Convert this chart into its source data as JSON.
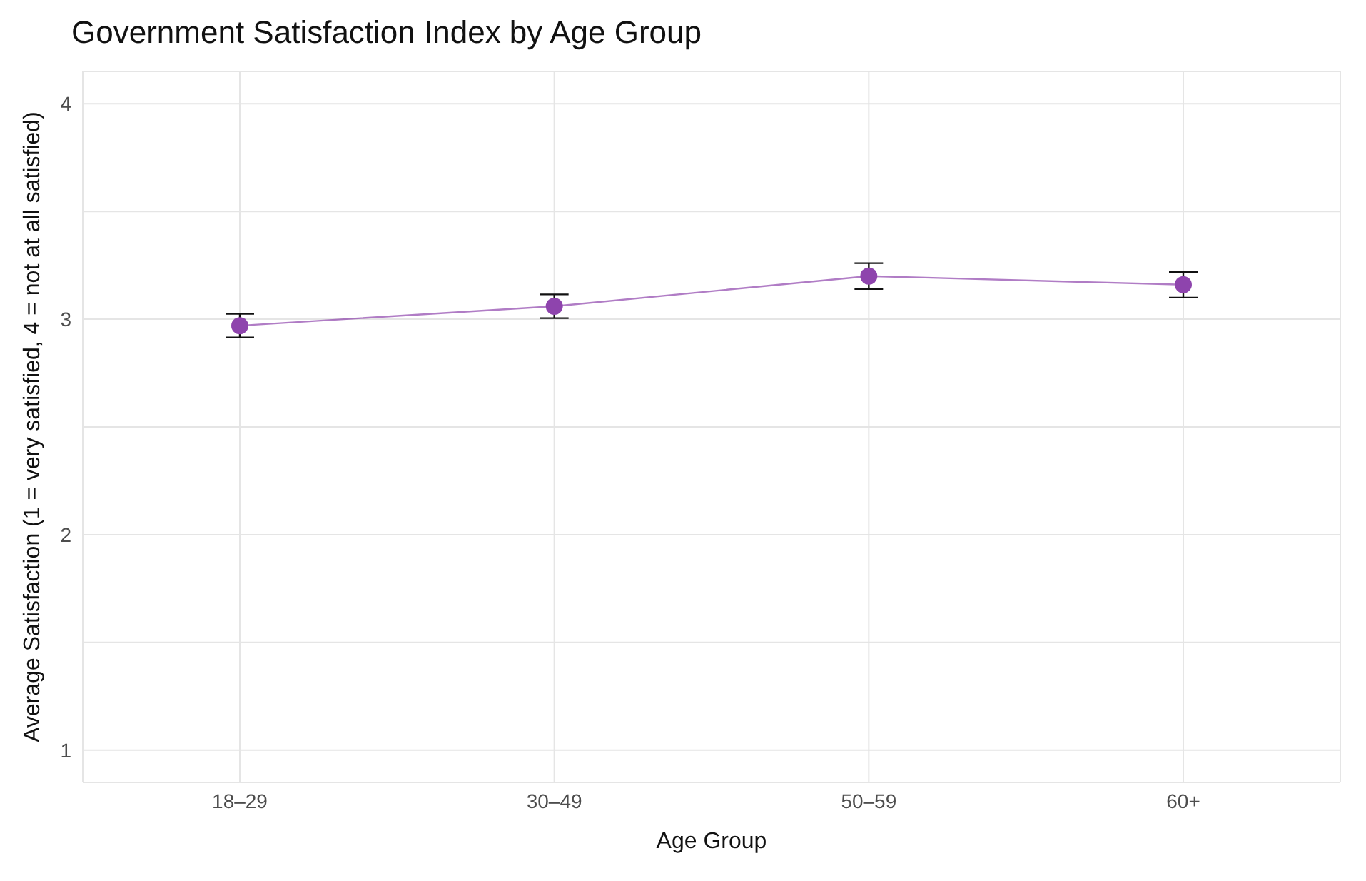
{
  "chart_data": {
    "type": "line",
    "title": "Government Satisfaction Index by Age Group",
    "xlabel": "Age Group",
    "ylabel": "Average Satisfaction (1 = very satisfied, 4 = not at all satisfied)",
    "categories": [
      "18–29",
      "30–49",
      "50–59",
      "60+"
    ],
    "series": [
      {
        "color": "#8e44ad",
        "values": [
          2.97,
          3.06,
          3.2,
          3.16
        ],
        "errors": [
          0.055,
          0.055,
          0.06,
          0.06
        ]
      }
    ],
    "ylim": [
      0.85,
      4.15
    ],
    "yticks": [
      1,
      {
        "value": 1.5,
        "label": null
      },
      2,
      {
        "value": 2.5,
        "label": null
      },
      3,
      {
        "value": 3.5,
        "label": null
      },
      4
    ],
    "grid": true,
    "marker": "circle",
    "line_style": "solid"
  }
}
